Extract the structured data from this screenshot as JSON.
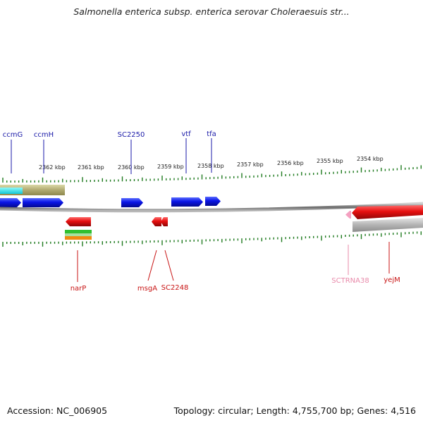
{
  "title": "Salmonella enterica subsp. enterica serovar Choleraesuis str...",
  "footer": {
    "accession": "Accession: NC_006905",
    "summary": "Topology: circular; Length: 4,755,700 bp; Genes: 4,516"
  },
  "colors": {
    "forward_gene": "#0a14e6",
    "reverse_gene": "#e60f0f",
    "trna": "#f4a0c0",
    "tick": "#1e7a1e",
    "backbone": "#8a8a8a",
    "forward_label": "#1a1aa8",
    "reverse_label": "#c81414",
    "trna_label": "#e88aaa"
  },
  "scale_labels": [
    "2362 kbp",
    "2361 kbp",
    "2360 kbp",
    "2359 kbp",
    "2358 kbp",
    "2357 kbp",
    "2356 kbp",
    "2355 kbp",
    "2354 kbp"
  ],
  "forward_genes": [
    {
      "name": "ccmG"
    },
    {
      "name": "ccmH"
    },
    {
      "name": "SC2250"
    },
    {
      "name": "vtf"
    },
    {
      "name": "tfa"
    }
  ],
  "reverse_genes": [
    {
      "name": "narP"
    },
    {
      "name": "msgA"
    },
    {
      "name": "SC2248"
    },
    {
      "name": "SCTRNA38"
    },
    {
      "name": "yejM"
    }
  ]
}
